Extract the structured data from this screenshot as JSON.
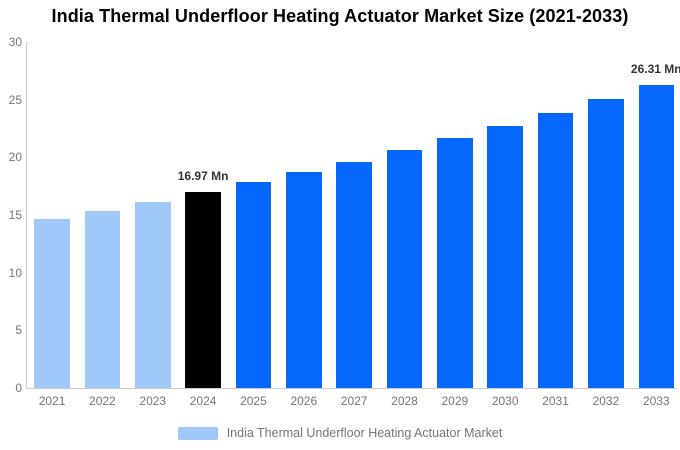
{
  "title": "India Thermal Underfloor Heating Actuator Market Size (2021-2033)",
  "colors": {
    "background": "#FFFFFF",
    "historical_bar": "#9FC9F8",
    "current_bar": "#000000",
    "forecast_bar": "#0667FD",
    "axis_line": "#CCCCCC",
    "tick_label": "#757575",
    "value_label": "#333333",
    "legend_text": "#757575"
  },
  "chart_data": {
    "type": "bar",
    "title": "India Thermal Underfloor Heating Actuator Market Size (2021-2033)",
    "categories": [
      "2021",
      "2022",
      "2023",
      "2024",
      "2025",
      "2026",
      "2027",
      "2028",
      "2029",
      "2030",
      "2031",
      "2032",
      "2033"
    ],
    "series": [
      {
        "name": "India Thermal Underfloor Heating Actuator Market",
        "values": [
          14.66,
          15.39,
          16.16,
          16.97,
          17.82,
          18.71,
          19.64,
          20.63,
          21.66,
          22.74,
          23.88,
          25.07,
          26.31
        ]
      }
    ],
    "unit": "Mn",
    "xlabel": "",
    "ylabel": "",
    "ylim": [
      0,
      30
    ],
    "yticks": [
      0,
      5,
      10,
      15,
      20,
      25,
      30
    ],
    "grid": false,
    "legend_position": "bottom",
    "bar_segments": [
      "historical",
      "historical",
      "historical",
      "current",
      "forecast",
      "forecast",
      "forecast",
      "forecast",
      "forecast",
      "forecast",
      "forecast",
      "forecast",
      "forecast"
    ],
    "data_labels": [
      {
        "category": "2024",
        "text": "16.97 Mn"
      },
      {
        "category": "2033",
        "text": "26.31 Mn"
      }
    ]
  },
  "legend": {
    "label": "India Thermal Underfloor Heating Actuator Market",
    "swatch_color": "#9FC9F8"
  }
}
